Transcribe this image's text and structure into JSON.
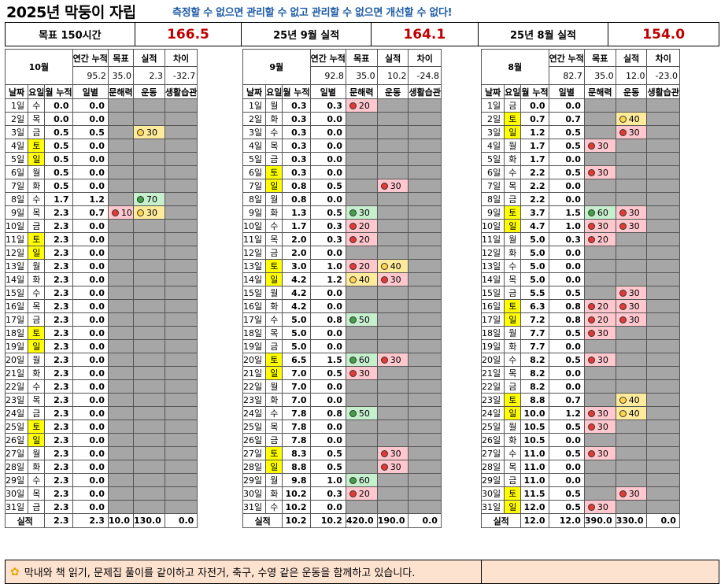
{
  "title": "2025년 막둥이 자립",
  "slogan": "측정할 수 없으면 관리할 수 없고 관리할 수 없으면 개선할 수 없다!",
  "summary": {
    "goal_label": "목표 150시간",
    "goal_value": "166.5",
    "sep_label": "25년 9월 실적",
    "sep_value": "164.1",
    "aug_label": "25년 8월 실적",
    "aug_value": "154.0"
  },
  "headers": {
    "annual": "연간 누적",
    "target": "목표",
    "actual": "실적",
    "diff": "차이",
    "cols": [
      "날짜",
      "요일",
      "월 누적",
      "일별",
      "문해력",
      "운동",
      "생활습관"
    ],
    "total_label": "실적"
  },
  "colors": {
    "weekend": "#ffff00",
    "empty": "#a6a6a6",
    "good": "#c6efce",
    "warn": "#ffeb9c",
    "bad": "#ffc7ce",
    "slogan": "#1f5ca8",
    "value": "#c00000"
  },
  "months": [
    {
      "name": "10월",
      "annual": "95.2",
      "target": "35.0",
      "actual": "2.3",
      "diff": "-32.7",
      "rows": [
        [
          "1일",
          "수",
          "0.0",
          "0.0",
          "",
          ""
        ],
        [
          "2일",
          "목",
          "0.0",
          "0.0",
          "",
          ""
        ],
        [
          "3일",
          "금",
          "0.5",
          "0.5",
          "",
          "y:30"
        ],
        [
          "4일",
          "토",
          "0.5",
          "0.0",
          "",
          ""
        ],
        [
          "5일",
          "일",
          "0.5",
          "0.0",
          "",
          ""
        ],
        [
          "6일",
          "월",
          "0.5",
          "0.0",
          "",
          ""
        ],
        [
          "7일",
          "화",
          "0.5",
          "0.0",
          "",
          ""
        ],
        [
          "8일",
          "수",
          "1.7",
          "1.2",
          "",
          "g:70"
        ],
        [
          "9일",
          "목",
          "2.3",
          "0.7",
          "r:10",
          "y:30"
        ],
        [
          "10일",
          "금",
          "2.3",
          "0.0",
          "",
          ""
        ],
        [
          "11일",
          "토",
          "2.3",
          "0.0",
          "",
          ""
        ],
        [
          "12일",
          "일",
          "2.3",
          "0.0",
          "",
          ""
        ],
        [
          "13일",
          "월",
          "2.3",
          "0.0",
          "",
          ""
        ],
        [
          "14일",
          "화",
          "2.3",
          "0.0",
          "",
          ""
        ],
        [
          "15일",
          "수",
          "2.3",
          "0.0",
          "",
          ""
        ],
        [
          "16일",
          "목",
          "2.3",
          "0.0",
          "",
          ""
        ],
        [
          "17일",
          "금",
          "2.3",
          "0.0",
          "",
          ""
        ],
        [
          "18일",
          "토",
          "2.3",
          "0.0",
          "",
          ""
        ],
        [
          "19일",
          "일",
          "2.3",
          "0.0",
          "",
          ""
        ],
        [
          "20일",
          "월",
          "2.3",
          "0.0",
          "",
          ""
        ],
        [
          "21일",
          "화",
          "2.3",
          "0.0",
          "",
          ""
        ],
        [
          "22일",
          "수",
          "2.3",
          "0.0",
          "",
          ""
        ],
        [
          "23일",
          "목",
          "2.3",
          "0.0",
          "",
          ""
        ],
        [
          "24일",
          "금",
          "2.3",
          "0.0",
          "",
          ""
        ],
        [
          "25일",
          "토",
          "2.3",
          "0.0",
          "",
          ""
        ],
        [
          "26일",
          "일",
          "2.3",
          "0.0",
          "",
          ""
        ],
        [
          "27일",
          "월",
          "2.3",
          "0.0",
          "",
          ""
        ],
        [
          "28일",
          "화",
          "2.3",
          "0.0",
          "",
          ""
        ],
        [
          "29일",
          "수",
          "2.3",
          "0.0",
          "",
          ""
        ],
        [
          "30일",
          "목",
          "2.3",
          "0.0",
          "",
          ""
        ],
        [
          "31일",
          "금",
          "2.3",
          "0.0",
          "",
          ""
        ]
      ],
      "totals": [
        "2.3",
        "2.3",
        "10.0",
        "130.0",
        "0.0"
      ]
    },
    {
      "name": "9월",
      "annual": "92.8",
      "target": "35.0",
      "actual": "10.2",
      "diff": "-24.8",
      "rows": [
        [
          "1일",
          "월",
          "0.3",
          "0.3",
          "r:20",
          ""
        ],
        [
          "2일",
          "화",
          "0.3",
          "0.0",
          "",
          ""
        ],
        [
          "3일",
          "수",
          "0.3",
          "0.0",
          "",
          ""
        ],
        [
          "4일",
          "목",
          "0.3",
          "0.0",
          "",
          ""
        ],
        [
          "5일",
          "금",
          "0.3",
          "0.0",
          "",
          ""
        ],
        [
          "6일",
          "토",
          "0.3",
          "0.0",
          "",
          ""
        ],
        [
          "7일",
          "일",
          "0.8",
          "0.5",
          "",
          "r:30"
        ],
        [
          "8일",
          "월",
          "0.8",
          "0.0",
          "",
          ""
        ],
        [
          "9일",
          "화",
          "1.3",
          "0.5",
          "g:30",
          ""
        ],
        [
          "10일",
          "수",
          "1.7",
          "0.3",
          "r:20",
          ""
        ],
        [
          "11일",
          "목",
          "2.0",
          "0.3",
          "r:20",
          ""
        ],
        [
          "12일",
          "금",
          "2.0",
          "0.0",
          "",
          ""
        ],
        [
          "13일",
          "토",
          "3.0",
          "1.0",
          "r:20",
          "y:40"
        ],
        [
          "14일",
          "일",
          "4.2",
          "1.2",
          "y:40",
          "r:30"
        ],
        [
          "15일",
          "월",
          "4.2",
          "0.0",
          "",
          ""
        ],
        [
          "16일",
          "화",
          "4.2",
          "0.0",
          "",
          ""
        ],
        [
          "17일",
          "수",
          "5.0",
          "0.8",
          "g:50",
          ""
        ],
        [
          "18일",
          "목",
          "5.0",
          "0.0",
          "",
          ""
        ],
        [
          "19일",
          "금",
          "5.0",
          "0.0",
          "",
          ""
        ],
        [
          "20일",
          "토",
          "6.5",
          "1.5",
          "g:60",
          "r:30"
        ],
        [
          "21일",
          "일",
          "7.0",
          "0.5",
          "r:30",
          ""
        ],
        [
          "22일",
          "월",
          "7.0",
          "0.0",
          "",
          ""
        ],
        [
          "23일",
          "화",
          "7.0",
          "0.0",
          "",
          ""
        ],
        [
          "24일",
          "수",
          "7.8",
          "0.8",
          "g:50",
          ""
        ],
        [
          "25일",
          "목",
          "7.8",
          "0.0",
          "",
          ""
        ],
        [
          "26일",
          "금",
          "7.8",
          "0.0",
          "",
          ""
        ],
        [
          "27일",
          "토",
          "8.3",
          "0.5",
          "",
          "r:30"
        ],
        [
          "28일",
          "일",
          "8.8",
          "0.5",
          "",
          "r:30"
        ],
        [
          "29일",
          "월",
          "9.8",
          "1.0",
          "g:60",
          ""
        ],
        [
          "30일",
          "화",
          "10.2",
          "0.3",
          "r:20",
          ""
        ],
        [
          "31일",
          "수",
          "10.2",
          "0.0",
          "",
          ""
        ]
      ],
      "totals": [
        "10.2",
        "10.2",
        "420.0",
        "190.0",
        "0.0"
      ]
    },
    {
      "name": "8월",
      "annual": "82.7",
      "target": "35.0",
      "actual": "12.0",
      "diff": "-23.0",
      "rows": [
        [
          "1일",
          "금",
          "0.0",
          "0.0",
          "",
          ""
        ],
        [
          "2일",
          "토",
          "0.7",
          "0.7",
          "",
          "y:40"
        ],
        [
          "3일",
          "일",
          "1.2",
          "0.5",
          "",
          "r:30"
        ],
        [
          "4일",
          "월",
          "1.7",
          "0.5",
          "r:30",
          ""
        ],
        [
          "5일",
          "화",
          "1.7",
          "0.0",
          "",
          ""
        ],
        [
          "6일",
          "수",
          "2.2",
          "0.5",
          "r:30",
          ""
        ],
        [
          "7일",
          "목",
          "2.2",
          "0.0",
          "",
          ""
        ],
        [
          "8일",
          "금",
          "2.2",
          "0.0",
          "",
          ""
        ],
        [
          "9일",
          "토",
          "3.7",
          "1.5",
          "g:60",
          "r:30"
        ],
        [
          "10일",
          "일",
          "4.7",
          "1.0",
          "r:30",
          "r:30"
        ],
        [
          "11일",
          "월",
          "5.0",
          "0.3",
          "r:20",
          ""
        ],
        [
          "12일",
          "화",
          "5.0",
          "0.0",
          "",
          ""
        ],
        [
          "13일",
          "수",
          "5.0",
          "0.0",
          "",
          ""
        ],
        [
          "14일",
          "목",
          "5.0",
          "0.0",
          "",
          ""
        ],
        [
          "15일",
          "금",
          "5.5",
          "0.5",
          "",
          "r:30"
        ],
        [
          "16일",
          "토",
          "6.3",
          "0.8",
          "r:20",
          "r:30"
        ],
        [
          "17일",
          "일",
          "7.2",
          "0.8",
          "r:20",
          "r:30"
        ],
        [
          "18일",
          "월",
          "7.7",
          "0.5",
          "r:30",
          ""
        ],
        [
          "19일",
          "화",
          "7.7",
          "0.0",
          "",
          ""
        ],
        [
          "20일",
          "수",
          "8.2",
          "0.5",
          "r:30",
          ""
        ],
        [
          "21일",
          "목",
          "8.2",
          "0.0",
          "",
          ""
        ],
        [
          "22일",
          "금",
          "8.2",
          "0.0",
          "",
          ""
        ],
        [
          "23일",
          "토",
          "8.8",
          "0.7",
          "",
          "y:40"
        ],
        [
          "24일",
          "일",
          "10.0",
          "1.2",
          "r:30",
          "y:40"
        ],
        [
          "25일",
          "월",
          "10.5",
          "0.5",
          "r:30",
          ""
        ],
        [
          "26일",
          "화",
          "10.5",
          "0.0",
          "",
          ""
        ],
        [
          "27일",
          "수",
          "11.0",
          "0.5",
          "r:30",
          ""
        ],
        [
          "28일",
          "목",
          "11.0",
          "0.0",
          "",
          ""
        ],
        [
          "29일",
          "금",
          "11.0",
          "0.0",
          "",
          ""
        ],
        [
          "30일",
          "토",
          "11.5",
          "0.5",
          "",
          "r:30"
        ],
        [
          "31일",
          "일",
          "12.0",
          "0.5",
          "r:30",
          ""
        ]
      ],
      "totals": [
        "12.0",
        "12.0",
        "390.0",
        "330.0",
        "0.0"
      ]
    }
  ],
  "note": {
    "icon": "sparkle-icon",
    "text": "막내와 책 읽기, 문제집 풀이를 같이하고 자전거, 축구, 수영 같은 운동을 함께하고 있습니다."
  }
}
